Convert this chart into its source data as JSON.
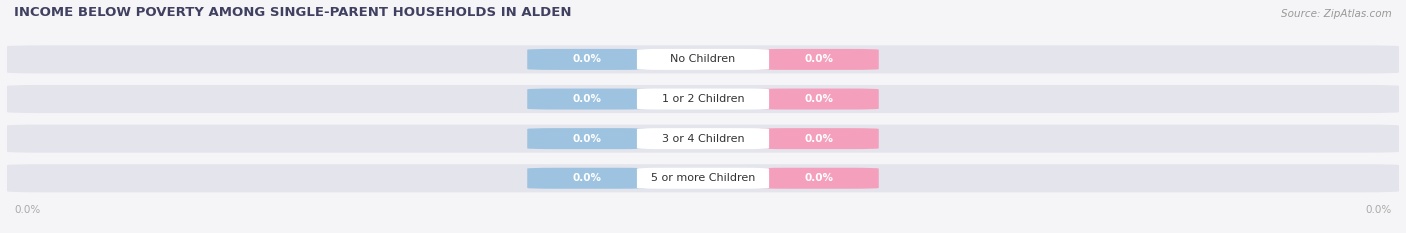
{
  "title": "INCOME BELOW POVERTY AMONG SINGLE-PARENT HOUSEHOLDS IN ALDEN",
  "source": "Source: ZipAtlas.com",
  "categories": [
    "No Children",
    "1 or 2 Children",
    "3 or 4 Children",
    "5 or more Children"
  ],
  "father_values": [
    0.0,
    0.0,
    0.0,
    0.0
  ],
  "mother_values": [
    0.0,
    0.0,
    0.0,
    0.0
  ],
  "father_color": "#9dc3e0",
  "mother_color": "#f4a0bc",
  "bar_bg_color": "#e4e4ec",
  "bar_bg_color2": "#ebebf2",
  "white_pill_color": "#ffffff",
  "title_color": "#404060",
  "source_color": "#999999",
  "category_color": "#333333",
  "value_color": "#ffffff",
  "axis_tick_color": "#aaaaaa",
  "background_color": "#f5f5f7",
  "axis_label_left": "0.0%",
  "axis_label_right": "0.0%",
  "title_fontsize": 9.5,
  "source_fontsize": 7.5,
  "label_fontsize": 7.5,
  "category_fontsize": 8,
  "legend_fontsize": 8
}
